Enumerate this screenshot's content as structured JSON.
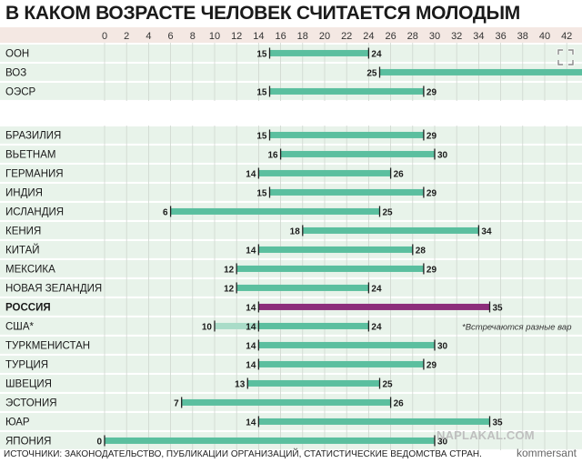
{
  "title": "В КАКОМ ВОЗРАСТЕ ЧЕЛОВЕК СЧИТАЕТСЯ МОЛОДЫМ",
  "footer": "ИСТОЧНИКИ: ЗАКОНОДАТЕЛЬСТВО, ПУБЛИКАЦИИ ОРГАНИЗАЦИЙ, СТАТИСТИЧЕСКИЕ ВЕДОМСТВА СТРАН.",
  "brand": "kommersant",
  "watermark": "NAPLAKAL.COM",
  "note": "*Встречаются разные вар",
  "colors": {
    "bar": "#5bbf9f",
    "russia_bar": "#8c2e7a",
    "usa_low_extension": "#a9dcc8",
    "row_band": "#e8f3ea",
    "axis_band": "#f4e8e3",
    "text": "#1a1a1a"
  },
  "chart_data": {
    "type": "bar",
    "orientation": "horizontal-range",
    "xlim": [
      0,
      43
    ],
    "x_ticks": [
      0,
      2,
      4,
      6,
      8,
      10,
      12,
      14,
      16,
      18,
      20,
      22,
      24,
      26,
      28,
      30,
      32,
      34,
      36,
      38,
      40,
      42
    ],
    "grid": true,
    "groups": [
      {
        "rows": [
          {
            "label": "ООН",
            "start": 15,
            "end": 24
          },
          {
            "label": "ВОЗ",
            "start": 25,
            "end": 44,
            "end_label_visible": false
          },
          {
            "label": "ОЭСР",
            "start": 15,
            "end": 29
          }
        ]
      },
      {
        "rows": [
          {
            "label": "БРАЗИЛИЯ",
            "start": 15,
            "end": 29
          },
          {
            "label": "ВЬЕТНАМ",
            "start": 16,
            "end": 30
          },
          {
            "label": "ГЕРМАНИЯ",
            "start": 14,
            "end": 26
          },
          {
            "label": "ИНДИЯ",
            "start": 15,
            "end": 29
          },
          {
            "label": "ИСЛАНДИЯ",
            "start": 6,
            "end": 25
          },
          {
            "label": "КЕНИЯ",
            "start": 18,
            "end": 34
          },
          {
            "label": "КИТАЙ",
            "start": 14,
            "end": 28
          },
          {
            "label": "МЕКСИКА",
            "start": 12,
            "end": 29
          },
          {
            "label": "НОВАЯ ЗЕЛАНДИЯ",
            "start": 12,
            "end": 24
          },
          {
            "label": "РОССИЯ",
            "start": 14,
            "end": 35,
            "highlight": true
          },
          {
            "label": "США*",
            "start": 14,
            "end": 24,
            "alt_start": 10
          },
          {
            "label": "ТУРКМЕНИСТАН",
            "start": 14,
            "end": 30
          },
          {
            "label": "ТУРЦИЯ",
            "start": 14,
            "end": 29
          },
          {
            "label": "ШВЕЦИЯ",
            "start": 13,
            "end": 25
          },
          {
            "label": "ЭСТОНИЯ",
            "start": 7,
            "end": 26
          },
          {
            "label": "ЮАР",
            "start": 14,
            "end": 35
          },
          {
            "label": "ЯПОНИЯ",
            "start": 0,
            "end": 30
          }
        ]
      }
    ]
  }
}
